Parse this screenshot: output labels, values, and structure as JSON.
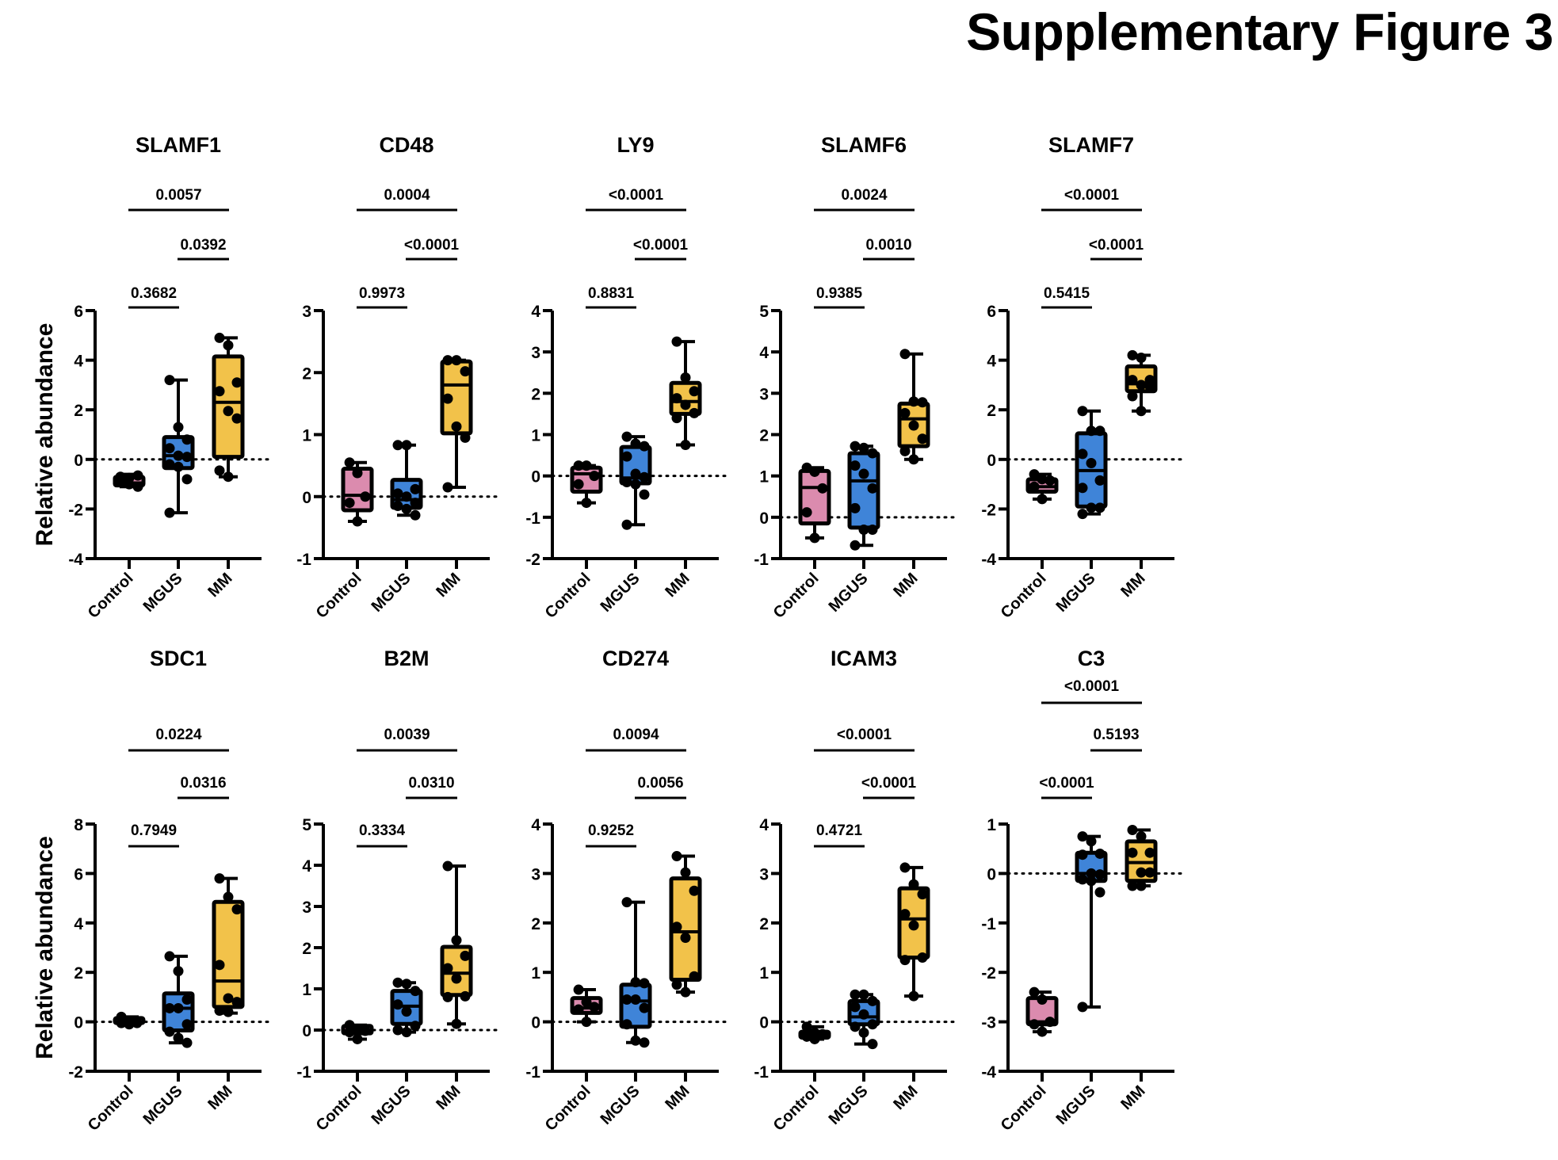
{
  "figure_title": "Supplementary Figure 3",
  "colors": {
    "Control": "#DB8BAE",
    "MGUS": "#3F84D8",
    "MM": "#F2C24A"
  },
  "chart_data": [
    {
      "type": "box",
      "title": "SLAMF1",
      "ylabel": "Relative abundance",
      "categories": [
        "Control",
        "MGUS",
        "MM"
      ],
      "ylim": [
        -4,
        6
      ],
      "yticks": [
        -4,
        -2,
        0,
        2,
        4,
        6
      ],
      "reference_line": 0,
      "boxes": [
        {
          "group": "Control",
          "min": -1.1,
          "q1": -1.05,
          "median": -0.95,
          "q3": -0.7,
          "max": -0.6,
          "points": [
            -0.7,
            -0.75,
            -0.65,
            -0.8,
            -1.0,
            -1.1,
            -0.9
          ]
        },
        {
          "group": "MGUS",
          "min": -2.15,
          "q1": -0.35,
          "median": 0.15,
          "q3": 0.9,
          "max": 3.2,
          "points": [
            3.2,
            1.3,
            0.8,
            0.45,
            0.15,
            0.1,
            -0.2,
            -0.3,
            -0.8,
            -2.15
          ]
        },
        {
          "group": "MM",
          "min": -0.7,
          "q1": 0.1,
          "median": 2.3,
          "q3": 4.15,
          "max": 4.9,
          "points": [
            4.9,
            4.6,
            3.1,
            2.75,
            1.95,
            1.65,
            -0.45,
            -0.7
          ]
        }
      ],
      "comparisons": [
        {
          "from": "Control",
          "to": "MGUS",
          "p": "0.3682"
        },
        {
          "from": "MGUS",
          "to": "MM",
          "p": "0.0392"
        },
        {
          "from": "Control",
          "to": "MM",
          "p": "0.0057"
        }
      ]
    },
    {
      "type": "box",
      "title": "CD48",
      "ylabel": "",
      "categories": [
        "Control",
        "MGUS",
        "MM"
      ],
      "ylim": [
        -1,
        3
      ],
      "yticks": [
        -1,
        0,
        1,
        2,
        3
      ],
      "reference_line": 0,
      "boxes": [
        {
          "group": "Control",
          "min": -0.4,
          "q1": -0.22,
          "median": 0.02,
          "q3": 0.45,
          "max": 0.55,
          "points": [
            0.55,
            0.38,
            0.0,
            -0.1,
            -0.4
          ]
        },
        {
          "group": "MGUS",
          "min": -0.3,
          "q1": -0.18,
          "median": -0.05,
          "q3": 0.27,
          "max": 0.83,
          "points": [
            0.83,
            0.83,
            0.12,
            0.05,
            0.0,
            -0.1,
            -0.15,
            -0.2,
            -0.3
          ]
        },
        {
          "group": "MM",
          "min": 0.15,
          "q1": 1.02,
          "median": 1.8,
          "q3": 2.18,
          "max": 2.2,
          "points": [
            2.2,
            2.2,
            2.02,
            1.58,
            1.13,
            0.95,
            0.15
          ]
        }
      ],
      "comparisons": [
        {
          "from": "Control",
          "to": "MGUS",
          "p": "0.9973"
        },
        {
          "from": "MGUS",
          "to": "MM",
          "p": "<0.0001"
        },
        {
          "from": "Control",
          "to": "MM",
          "p": "0.0004"
        }
      ]
    },
    {
      "type": "box",
      "title": "LY9",
      "ylabel": "",
      "categories": [
        "Control",
        "MGUS",
        "MM"
      ],
      "ylim": [
        -2,
        4
      ],
      "yticks": [
        -2,
        -1,
        0,
        1,
        2,
        3,
        4
      ],
      "reference_line": 0,
      "boxes": [
        {
          "group": "Control",
          "min": -0.65,
          "q1": -0.38,
          "median": 0.05,
          "q3": 0.2,
          "max": 0.25,
          "points": [
            0.25,
            0.25,
            0.0,
            -0.2,
            -0.65
          ]
        },
        {
          "group": "MGUS",
          "min": -1.18,
          "q1": -0.18,
          "median": -0.05,
          "q3": 0.7,
          "max": 0.95,
          "points": [
            0.95,
            0.78,
            0.72,
            0.47,
            0.05,
            -0.03,
            -0.15,
            -0.2,
            -0.45,
            -1.18
          ]
        },
        {
          "group": "MM",
          "min": 0.75,
          "q1": 1.5,
          "median": 1.8,
          "q3": 2.25,
          "max": 3.25,
          "points": [
            3.25,
            2.38,
            2.05,
            1.88,
            1.72,
            1.52,
            1.4,
            0.75
          ]
        }
      ],
      "comparisons": [
        {
          "from": "Control",
          "to": "MGUS",
          "p": "0.8831"
        },
        {
          "from": "MGUS",
          "to": "MM",
          "p": "<0.0001"
        },
        {
          "from": "Control",
          "to": "MM",
          "p": "<0.0001"
        }
      ]
    },
    {
      "type": "box",
      "title": "SLAMF6",
      "ylabel": "",
      "categories": [
        "Control",
        "MGUS",
        "MM"
      ],
      "ylim": [
        -1,
        5
      ],
      "yticks": [
        -1,
        0,
        1,
        2,
        3,
        4,
        5
      ],
      "reference_line": 0,
      "boxes": [
        {
          "group": "Control",
          "min": -0.5,
          "q1": -0.15,
          "median": 0.72,
          "q3": 1.12,
          "max": 1.2,
          "points": [
            1.2,
            1.1,
            0.7,
            0.12,
            -0.5
          ]
        },
        {
          "group": "MGUS",
          "min": -0.68,
          "q1": -0.25,
          "median": 0.88,
          "q3": 1.55,
          "max": 1.72,
          "points": [
            1.72,
            1.68,
            1.55,
            1.25,
            1.05,
            0.7,
            0.22,
            -0.3,
            -0.3,
            -0.68
          ]
        },
        {
          "group": "MM",
          "min": 1.4,
          "q1": 1.72,
          "median": 2.38,
          "q3": 2.75,
          "max": 3.95,
          "points": [
            3.95,
            2.8,
            2.78,
            2.52,
            2.22,
            1.9,
            1.6,
            1.4
          ]
        }
      ],
      "comparisons": [
        {
          "from": "Control",
          "to": "MGUS",
          "p": "0.9385"
        },
        {
          "from": "MGUS",
          "to": "MM",
          "p": "0.0010"
        },
        {
          "from": "Control",
          "to": "MM",
          "p": "0.0024"
        }
      ]
    },
    {
      "type": "box",
      "title": "SLAMF7",
      "ylabel": "",
      "categories": [
        "Control",
        "MGUS",
        "MM"
      ],
      "ylim": [
        -4,
        6
      ],
      "yticks": [
        -4,
        -2,
        0,
        2,
        4,
        6
      ],
      "reference_line": 0,
      "boxes": [
        {
          "group": "Control",
          "min": -1.6,
          "q1": -1.3,
          "median": -1.1,
          "q3": -0.8,
          "max": -0.6,
          "points": [
            -0.6,
            -0.8,
            -0.85,
            -1.1,
            -1.6
          ]
        },
        {
          "group": "MGUS",
          "min": -2.2,
          "q1": -1.9,
          "median": -0.45,
          "q3": 1.05,
          "max": 1.95,
          "points": [
            1.95,
            1.15,
            1.15,
            0.22,
            -0.15,
            -0.85,
            -1.15,
            -1.95,
            -1.95,
            -2.2
          ]
        },
        {
          "group": "MM",
          "min": 1.95,
          "q1": 2.75,
          "median": 3.05,
          "q3": 3.75,
          "max": 4.2,
          "points": [
            4.2,
            4.1,
            3.2,
            3.2,
            3.0,
            2.95,
            2.55,
            1.95
          ]
        }
      ],
      "comparisons": [
        {
          "from": "Control",
          "to": "MGUS",
          "p": "0.5415"
        },
        {
          "from": "MGUS",
          "to": "MM",
          "p": "<0.0001"
        },
        {
          "from": "Control",
          "to": "MM",
          "p": "<0.0001"
        }
      ]
    },
    {
      "type": "box",
      "title": "SDC1",
      "ylabel": "Relative abundance",
      "categories": [
        "Control",
        "MGUS",
        "MM"
      ],
      "ylim": [
        -2,
        8
      ],
      "yticks": [
        -2,
        0,
        2,
        4,
        6,
        8
      ],
      "reference_line": 0,
      "boxes": [
        {
          "group": "Control",
          "min": -0.1,
          "q1": -0.05,
          "median": 0.0,
          "q3": 0.15,
          "max": 0.2,
          "points": [
            0.2,
            0.0,
            -0.05,
            -0.05,
            -0.1
          ]
        },
        {
          "group": "MGUS",
          "min": -0.85,
          "q1": -0.35,
          "median": 0.55,
          "q3": 1.15,
          "max": 2.65,
          "points": [
            2.65,
            2.05,
            0.9,
            0.55,
            0.55,
            -0.1,
            -0.4,
            -0.65,
            -0.85
          ]
        },
        {
          "group": "MM",
          "min": 0.35,
          "q1": 0.6,
          "median": 1.65,
          "q3": 4.85,
          "max": 5.8,
          "points": [
            5.8,
            5.05,
            4.55,
            2.3,
            0.95,
            0.8,
            0.45,
            0.4
          ]
        }
      ],
      "comparisons": [
        {
          "from": "Control",
          "to": "MGUS",
          "p": "0.7949"
        },
        {
          "from": "MGUS",
          "to": "MM",
          "p": "0.0316"
        },
        {
          "from": "Control",
          "to": "MM",
          "p": "0.0224"
        }
      ]
    },
    {
      "type": "box",
      "title": "B2M",
      "ylabel": "",
      "categories": [
        "Control",
        "MGUS",
        "MM"
      ],
      "ylim": [
        -1,
        5
      ],
      "yticks": [
        -1,
        0,
        1,
        2,
        3,
        4,
        5
      ],
      "reference_line": 0,
      "boxes": [
        {
          "group": "Control",
          "min": -0.22,
          "q1": -0.08,
          "median": -0.02,
          "q3": 0.1,
          "max": 0.12,
          "points": [
            0.12,
            0.0,
            -0.02,
            -0.05,
            -0.22
          ]
        },
        {
          "group": "MGUS",
          "min": -0.05,
          "q1": 0.15,
          "median": 0.58,
          "q3": 0.95,
          "max": 1.15,
          "points": [
            1.15,
            1.12,
            0.95,
            0.62,
            0.45,
            0.1,
            0.0,
            -0.05
          ]
        },
        {
          "group": "MM",
          "min": 0.15,
          "q1": 0.85,
          "median": 1.38,
          "q3": 2.02,
          "max": 3.98,
          "points": [
            3.98,
            2.18,
            1.8,
            1.5,
            1.25,
            0.82,
            0.8,
            0.15
          ]
        }
      ],
      "comparisons": [
        {
          "from": "Control",
          "to": "MGUS",
          "p": "0.3334"
        },
        {
          "from": "MGUS",
          "to": "MM",
          "p": "0.0310"
        },
        {
          "from": "Control",
          "to": "MM",
          "p": "0.0039"
        }
      ]
    },
    {
      "type": "box",
      "title": "CD274",
      "ylabel": "",
      "categories": [
        "Control",
        "MGUS",
        "MM"
      ],
      "ylim": [
        -1,
        4
      ],
      "yticks": [
        -1,
        0,
        1,
        2,
        3,
        4
      ],
      "reference_line": 0,
      "boxes": [
        {
          "group": "Control",
          "min": 0.0,
          "q1": 0.18,
          "median": 0.28,
          "q3": 0.48,
          "max": 0.65,
          "points": [
            0.65,
            0.4,
            0.3,
            0.25,
            0.0
          ]
        },
        {
          "group": "MGUS",
          "min": -0.42,
          "q1": -0.1,
          "median": 0.42,
          "q3": 0.75,
          "max": 2.42,
          "points": [
            2.42,
            0.8,
            0.78,
            0.45,
            0.45,
            0.28,
            -0.05,
            -0.38,
            -0.42
          ]
        },
        {
          "group": "MM",
          "min": 0.6,
          "q1": 0.85,
          "median": 1.82,
          "q3": 2.9,
          "max": 3.35,
          "points": [
            3.35,
            3.02,
            2.65,
            1.92,
            1.7,
            0.92,
            0.75,
            0.6
          ]
        }
      ],
      "comparisons": [
        {
          "from": "Control",
          "to": "MGUS",
          "p": "0.9252"
        },
        {
          "from": "MGUS",
          "to": "MM",
          "p": "0.0056"
        },
        {
          "from": "Control",
          "to": "MM",
          "p": "0.0094"
        }
      ]
    },
    {
      "type": "box",
      "title": "ICAM3",
      "ylabel": "",
      "categories": [
        "Control",
        "MGUS",
        "MM"
      ],
      "ylim": [
        -1,
        4
      ],
      "yticks": [
        -1,
        0,
        1,
        2,
        3,
        4
      ],
      "reference_line": 0,
      "boxes": [
        {
          "group": "Control",
          "min": -0.35,
          "q1": -0.32,
          "median": -0.25,
          "q3": -0.2,
          "max": -0.1,
          "points": [
            -0.1,
            -0.22,
            -0.25,
            -0.3,
            -0.35
          ]
        },
        {
          "group": "MGUS",
          "min": -0.45,
          "q1": -0.05,
          "median": 0.1,
          "q3": 0.42,
          "max": 0.55,
          "points": [
            0.55,
            0.55,
            0.42,
            0.3,
            0.15,
            -0.05,
            -0.1,
            -0.22,
            -0.45
          ]
        },
        {
          "group": "MM",
          "min": 0.52,
          "q1": 1.3,
          "median": 2.08,
          "q3": 2.7,
          "max": 3.12,
          "points": [
            3.12,
            2.78,
            2.58,
            2.18,
            1.95,
            1.3,
            1.25,
            0.52
          ]
        }
      ],
      "comparisons": [
        {
          "from": "Control",
          "to": "MGUS",
          "p": "0.4721"
        },
        {
          "from": "MGUS",
          "to": "MM",
          "p": "<0.0001"
        },
        {
          "from": "Control",
          "to": "MM",
          "p": "<0.0001"
        }
      ]
    },
    {
      "type": "box",
      "title": "C3",
      "ylabel": "",
      "categories": [
        "Control",
        "MGUS",
        "MM"
      ],
      "ylim": [
        -4,
        1
      ],
      "yticks": [
        -4,
        -3,
        -2,
        -1,
        0,
        1
      ],
      "reference_line": 0,
      "boxes": [
        {
          "group": "Control",
          "min": -3.2,
          "q1": -3.05,
          "median": -3.0,
          "q3": -2.52,
          "max": -2.4,
          "points": [
            -2.4,
            -2.55,
            -3.0,
            -3.05,
            -3.2
          ]
        },
        {
          "group": "MGUS",
          "min": -2.7,
          "q1": -0.15,
          "median": 0.0,
          "q3": 0.42,
          "max": 0.75,
          "points": [
            0.75,
            0.65,
            0.4,
            0.38,
            0.0,
            -0.02,
            -0.12,
            -0.15,
            -0.38,
            -2.7
          ]
        },
        {
          "group": "MM",
          "min": -0.25,
          "q1": -0.15,
          "median": 0.22,
          "q3": 0.65,
          "max": 0.88,
          "points": [
            0.88,
            0.75,
            0.42,
            0.42,
            0.02,
            0.02,
            -0.25,
            -0.25
          ]
        }
      ],
      "comparisons": [
        {
          "from": "Control",
          "to": "MGUS",
          "p": "<0.0001"
        },
        {
          "from": "MGUS",
          "to": "MM",
          "p": "0.5193"
        },
        {
          "from": "Control",
          "to": "MM",
          "p": "<0.0001"
        }
      ]
    }
  ]
}
